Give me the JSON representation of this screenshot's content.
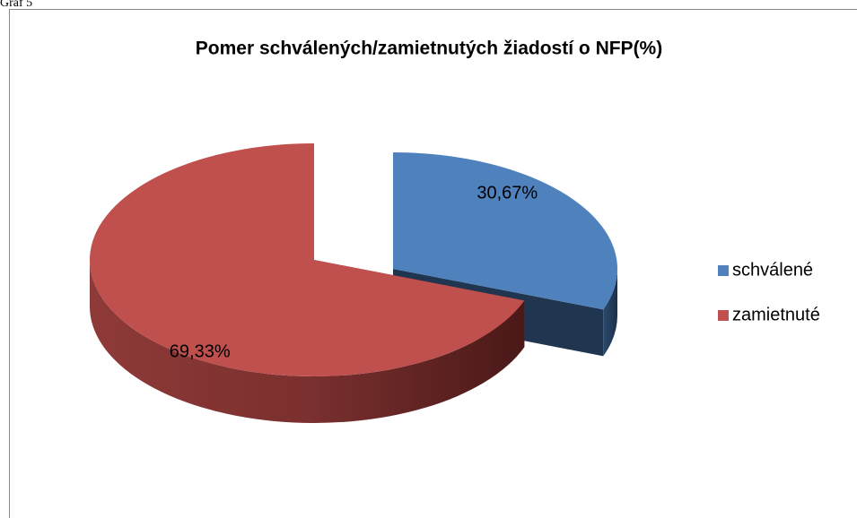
{
  "caption": "Graf 5",
  "chart_data": {
    "type": "pie",
    "title": "Pomer schválených/zamietnutých žiadostí o NFP(%)",
    "categories": [
      "schválené",
      "zamietnuté"
    ],
    "values": [
      30.67,
      69.33
    ],
    "value_labels": [
      "30,67%",
      "69,33%"
    ],
    "colors": [
      "#4f81bd",
      "#c0504d"
    ],
    "legend": "right"
  }
}
